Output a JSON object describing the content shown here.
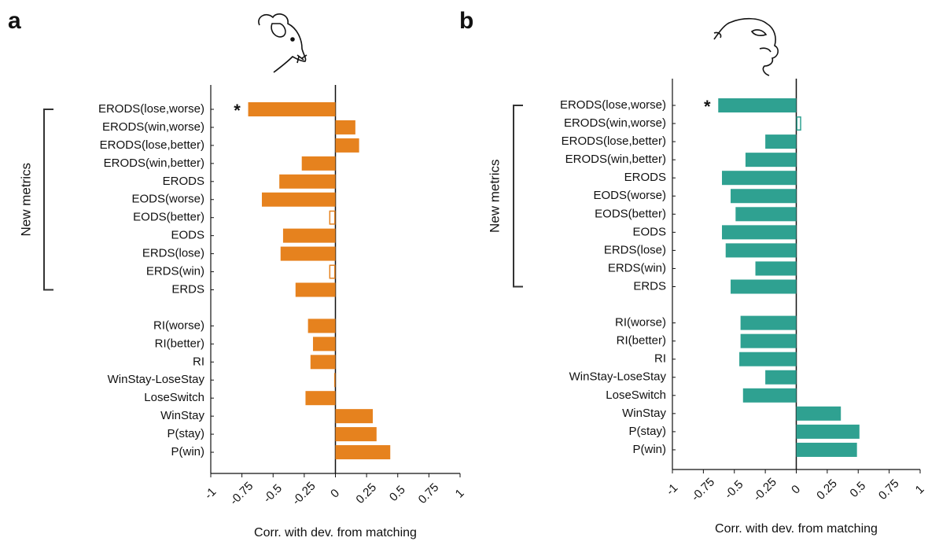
{
  "chart_data": [
    {
      "type": "bar",
      "orientation": "horizontal",
      "panel_label": "a",
      "xlabel": "Corr. with dev. from matching",
      "color": "#e6821e",
      "categories": [
        "ERODS(lose,worse)",
        "ERODS(win,worse)",
        "ERODS(lose,better)",
        "ERODS(win,better)",
        "ERODS",
        "EODS(worse)",
        "EODS(better)",
        "EODS",
        "ERDS(lose)",
        "ERDS(win)",
        "ERDS",
        null,
        "RI(worse)",
        "RI(better)",
        "RI",
        "WinStay-LoseStay",
        "LoseSwitch",
        "WinStay",
        "P(stay)",
        "P(win)"
      ],
      "values": [
        -0.7,
        0.16,
        0.19,
        -0.27,
        -0.45,
        -0.59,
        -0.05,
        -0.42,
        -0.44,
        -0.05,
        -0.32,
        null,
        -0.22,
        -0.18,
        -0.2,
        -0.01,
        -0.24,
        0.3,
        0.33,
        0.44
      ],
      "hollow": [
        false,
        false,
        false,
        false,
        false,
        false,
        true,
        false,
        false,
        true,
        false,
        false,
        false,
        false,
        false,
        false,
        false,
        false,
        false,
        false
      ],
      "xlim": [
        -1,
        1
      ],
      "xticks": [
        -1,
        -0.75,
        -0.5,
        -0.25,
        0,
        0.25,
        0.5,
        0.75,
        1
      ],
      "marker": {
        "text": "*",
        "category": "ERODS(lose,worse)"
      },
      "bracket": {
        "label": "New metrics",
        "first": "ERODS(lose,worse)",
        "last": "ERDS"
      }
    },
    {
      "type": "bar",
      "orientation": "horizontal",
      "panel_label": "b",
      "xlabel": "Corr. with dev. from matching",
      "color": "#2fa191",
      "categories": [
        "ERODS(lose,worse)",
        "ERODS(win,worse)",
        "ERODS(lose,better)",
        "ERODS(win,better)",
        "ERODS",
        "EODS(worse)",
        "EODS(better)",
        "EODS",
        "ERDS(lose)",
        "ERDS(win)",
        "ERDS",
        null,
        "RI(worse)",
        "RI(better)",
        "RI",
        "WinStay-LoseStay",
        "LoseSwitch",
        "WinStay",
        "P(stay)",
        "P(win)"
      ],
      "values": [
        -0.63,
        0.04,
        -0.25,
        -0.41,
        -0.6,
        -0.53,
        -0.49,
        -0.6,
        -0.57,
        -0.33,
        -0.53,
        null,
        -0.45,
        -0.45,
        -0.46,
        -0.25,
        -0.43,
        0.36,
        0.51,
        0.49
      ],
      "hollow": [
        false,
        true,
        false,
        false,
        false,
        false,
        false,
        false,
        false,
        false,
        false,
        false,
        false,
        false,
        false,
        false,
        false,
        false,
        false,
        false
      ],
      "xlim": [
        -1,
        1
      ],
      "xticks": [
        -1,
        -0.75,
        -0.5,
        -0.25,
        0,
        0.25,
        0.5,
        0.75,
        1
      ],
      "marker": {
        "text": "*",
        "category": "ERODS(lose,worse)"
      },
      "bracket": {
        "label": "New metrics",
        "first": "ERODS(lose,worse)",
        "last": "ERDS"
      }
    }
  ]
}
